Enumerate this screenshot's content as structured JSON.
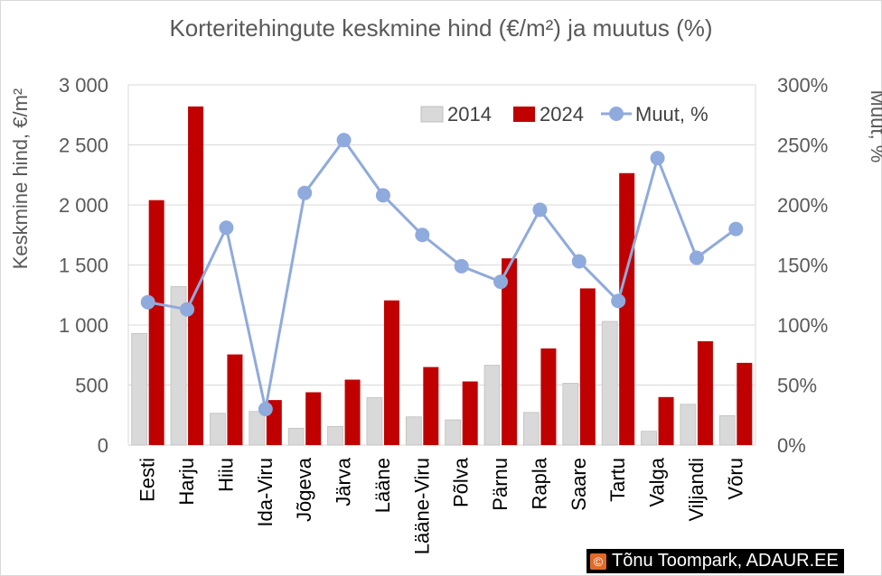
{
  "chart_data": {
    "type": "bar",
    "title": "Korteritehingute keskmine hind (€/m²) ja muutus (%)",
    "ylabel": "Keskmine hind, €/m²",
    "ylabel_right": "Muut, %",
    "ylim": [
      0,
      3000
    ],
    "ylim_right": [
      0,
      300
    ],
    "yticks": [
      "0",
      "500",
      "1 000",
      "1 500",
      "2 000",
      "2 500",
      "3 000"
    ],
    "yticks_right": [
      "0%",
      "50%",
      "100%",
      "150%",
      "200%",
      "250%",
      "300%"
    ],
    "grid": true,
    "legend_position": "top-right",
    "categories": [
      "Eesti",
      "Harju",
      "Hiiu",
      "Ida-Viru",
      "Jõgeva",
      "Järva",
      "Lääne",
      "Lääne-Viru",
      "Põlva",
      "Pärnu",
      "Rapla",
      "Saare",
      "Tartu",
      "Valga",
      "Viljandi",
      "Võru"
    ],
    "series": [
      {
        "name": "2014",
        "kind": "bar",
        "axis": "left",
        "color": "#d9d9d9",
        "values": [
          930,
          1320,
          265,
          280,
          140,
          155,
          395,
          235,
          210,
          665,
          272,
          515,
          1030,
          115,
          340,
          245
        ]
      },
      {
        "name": "2024",
        "kind": "bar",
        "axis": "left",
        "color": "#c00000",
        "values": [
          2040,
          2820,
          755,
          375,
          440,
          545,
          1205,
          650,
          530,
          1555,
          805,
          1305,
          2265,
          400,
          865,
          685
        ]
      },
      {
        "name": "Muut, %",
        "kind": "line",
        "axis": "right",
        "color": "#8faadc",
        "values": [
          119,
          113,
          181,
          30,
          210,
          254,
          208,
          175,
          149,
          136,
          196,
          153,
          120,
          239,
          156,
          180
        ]
      }
    ]
  },
  "credit": {
    "icon_label": "©",
    "text": "Tõnu Toompark, ADAUR.EE"
  }
}
